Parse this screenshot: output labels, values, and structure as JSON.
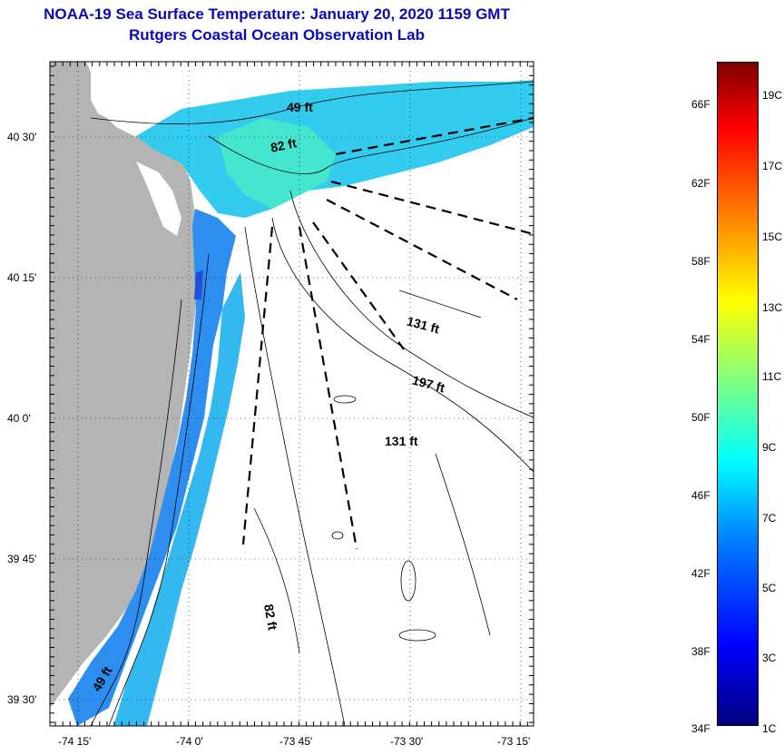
{
  "title": {
    "line1": "NOAA-19 Sea Surface Temperature:  January 20, 2020 1159 GMT",
    "line2": "Rutgers Coastal Ocean Observation Lab"
  },
  "axes": {
    "lat_labels": [
      "40 30'",
      "40 15'",
      "40 0'",
      "39 45'",
      "39 30'"
    ],
    "lon_labels": [
      "-74 15'",
      "-74 0'",
      "-73 45'",
      "-73 30'",
      "-73 15'"
    ]
  },
  "depth_labels": [
    "49 ft",
    "82 ft",
    "131 ft",
    "197 ft",
    "131 ft",
    "82 ft",
    "49 ft"
  ],
  "colorbar": {
    "fahrenheit": [
      "66F",
      "62F",
      "58F",
      "54F",
      "50F",
      "46F",
      "42F",
      "38F",
      "34F"
    ],
    "celsius": [
      "19C",
      "17C",
      "15C",
      "13C",
      "11C",
      "9C",
      "7C",
      "5C",
      "3C",
      "1C"
    ]
  },
  "colors": {
    "title": "#0a0ab4",
    "land": "#b4b4b4",
    "ocean_mid": "#33ccee",
    "ocean_light": "#44e6d0",
    "ocean_deep": "#2060e0"
  }
}
